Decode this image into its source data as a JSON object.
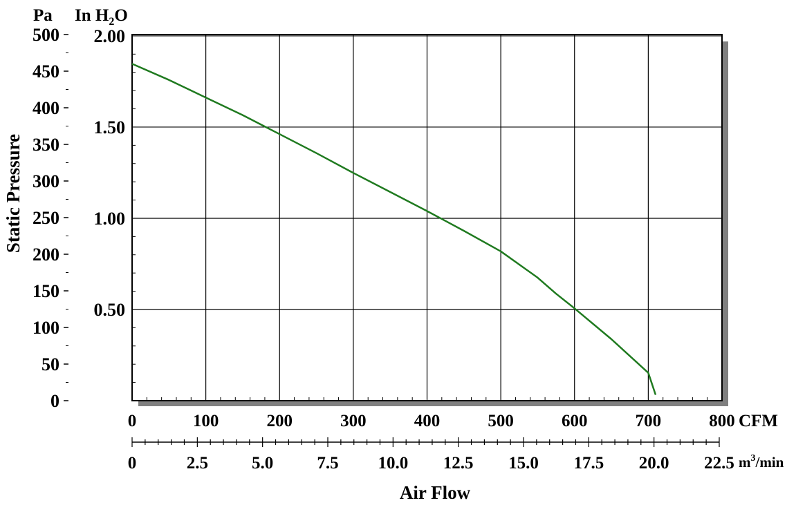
{
  "chart_data": {
    "type": "line",
    "xlabel": "Air Flow",
    "ylabel": "Static Pressure",
    "units": {
      "pa": "Pa",
      "inh2o_prefix": "In H",
      "inh2o_sub": "2",
      "inh2o_suffix": "O",
      "cfm": "CFM",
      "m3_prefix": "m",
      "m3_sup": "3",
      "m3_suffix": "/min"
    },
    "xlim": [
      0,
      800
    ],
    "ylim": [
      0,
      500
    ],
    "x_ticks_cfm": [
      "0",
      "100",
      "200",
      "300",
      "400",
      "500",
      "600",
      "700",
      "800"
    ],
    "x_ticks_m3min": [
      "0",
      "2.5",
      "5.0",
      "7.5",
      "10.0",
      "12.5",
      "15.0",
      "17.5",
      "20.0",
      "22.5"
    ],
    "y_ticks_pa": [
      "0",
      "50",
      "100",
      "150",
      "200",
      "250",
      "300",
      "350",
      "400",
      "450",
      "500"
    ],
    "y_ticks_inh2o": [
      "0.50",
      "1.00",
      "1.50",
      "2.00"
    ],
    "grid": true,
    "series": [
      {
        "color": "#1f7a1f",
        "x": [
          0,
          50,
          100,
          150,
          200,
          250,
          300,
          350,
          400,
          450,
          500,
          550,
          575,
          600,
          650,
          700,
          710
        ],
        "y": [
          460,
          438,
          414,
          390,
          364,
          338,
          311,
          285,
          259,
          232,
          204,
          168,
          146,
          126,
          84,
          38,
          8
        ]
      }
    ]
  }
}
